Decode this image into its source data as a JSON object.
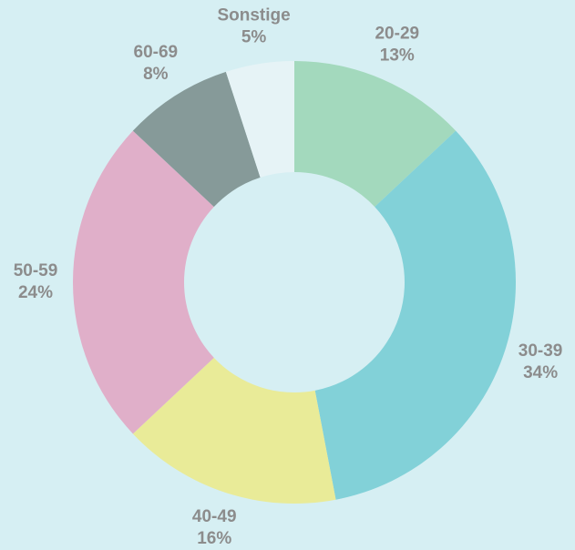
{
  "chart_data": {
    "type": "donut",
    "categories": [
      "20-29",
      "30-39",
      "40-49",
      "50-59",
      "60-69",
      "Sonstige"
    ],
    "values": [
      13,
      34,
      16,
      24,
      8,
      5
    ],
    "value_labels": [
      "13%",
      "34%",
      "16%",
      "24%",
      "8%",
      "5%"
    ],
    "colors": [
      "#a3d9bd",
      "#82d1d8",
      "#e9eb98",
      "#e0afc9",
      "#869a99",
      "#e6f3f6"
    ]
  }
}
